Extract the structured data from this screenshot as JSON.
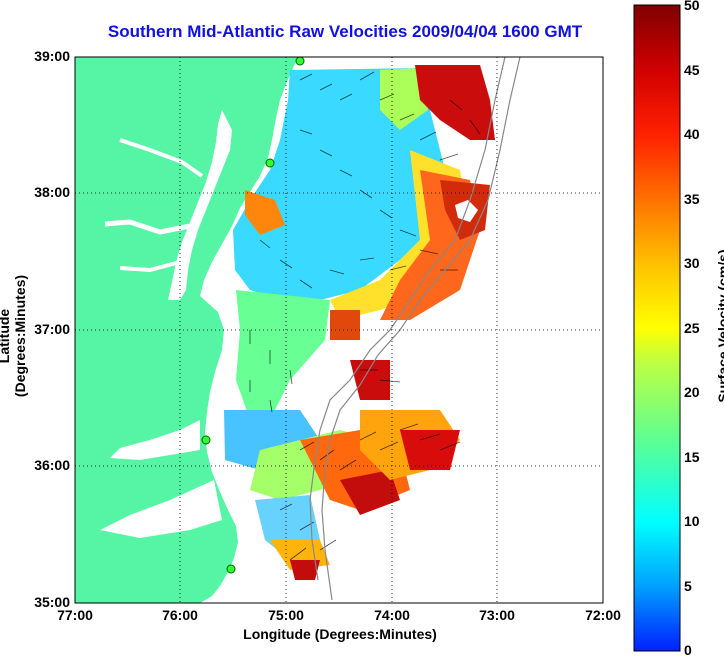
{
  "title": "Southern Mid-Atlantic Raw Velocities 2009/04/04 1600 GMT",
  "xlabel": "Longitude (Degrees:Minutes)",
  "ylabel": "Latitude (Degrees:Minutes)",
  "x_ticks": [
    "77:00",
    "76:00",
    "75:00",
    "74:00",
    "73:00",
    "72:00"
  ],
  "y_ticks": [
    "39:00",
    "38:00",
    "37:00",
    "36:00",
    "35:00"
  ],
  "colorbar": {
    "label": "Surface Velocity (cm/s)",
    "ticks": [
      "50",
      "45",
      "40",
      "35",
      "30",
      "25",
      "20",
      "15",
      "10",
      "5",
      "0"
    ],
    "range": [
      0,
      50
    ],
    "colors": [
      "#0020ff",
      "#00a0ff",
      "#00ffff",
      "#60ff90",
      "#c0ff40",
      "#ffff00",
      "#ffc000",
      "#ff7000",
      "#ff2000",
      "#d00000",
      "#800000"
    ]
  },
  "map": {
    "lon_range": [
      -77,
      -72
    ],
    "lat_range": [
      35,
      39
    ],
    "land_color": "#55f5a5",
    "water_color": "#ffffff",
    "grid": "dotted"
  },
  "stations": [
    "station-1",
    "station-2",
    "station-3",
    "station-4"
  ]
}
